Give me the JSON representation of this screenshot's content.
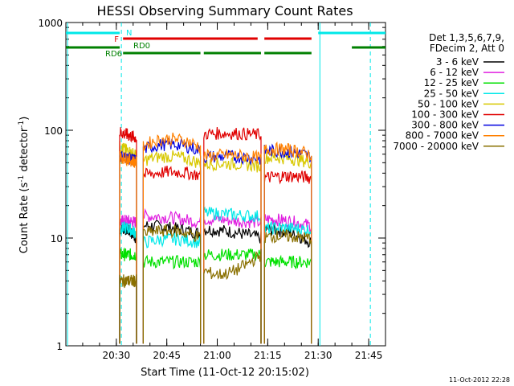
{
  "chart_data": {
    "type": "line",
    "title": "HESSI Observing Summary Count Rates",
    "xlabel": "Start Time (11-Oct-12 20:15:02)",
    "ylabel_main": "Count Rate (s",
    "ylabel_sup1": "-1",
    "ylabel_mid": " detector",
    "ylabel_sup2": "-1",
    "ylabel_end": ")",
    "yscale": "log",
    "ylim": [
      1,
      1000
    ],
    "xlim_minutes": [
      0,
      95
    ],
    "x_ticks": [
      {
        "m": 15,
        "label": "20:30"
      },
      {
        "m": 30,
        "label": "20:45"
      },
      {
        "m": 45,
        "label": "21:00"
      },
      {
        "m": 60,
        "label": "21:15"
      },
      {
        "m": 75,
        "label": "21:30"
      },
      {
        "m": 90,
        "label": "21:45"
      }
    ],
    "y_ticks": [
      {
        "v": 1,
        "label": "1"
      },
      {
        "v": 10,
        "label": "10"
      },
      {
        "v": 100,
        "label": "100"
      },
      {
        "v": 1000,
        "label": "1000"
      }
    ],
    "legend_header1": "Det 1,3,5,6,7,9,",
    "legend_header2": "FDecim 2, Att 0",
    "legend_position": "right, outside plot",
    "series": [
      {
        "name": "3 - 6 keV",
        "color": "#000000",
        "segments": [
          [
            16,
            21,
            12,
            13,
            11,
            10
          ],
          [
            23,
            40,
            13,
            13,
            12,
            11
          ],
          [
            41,
            58,
            12,
            12,
            11,
            10
          ],
          [
            59,
            73,
            12,
            12,
            11,
            9
          ]
        ]
      },
      {
        "name": "6 - 12 keV",
        "color": "#e020e0",
        "segments": [
          [
            16,
            21,
            14,
            15,
            14,
            14
          ],
          [
            23,
            40,
            16,
            16,
            15,
            14
          ],
          [
            41,
            58,
            15,
            15,
            14,
            14
          ],
          [
            59,
            73,
            15,
            15,
            14,
            13
          ]
        ]
      },
      {
        "name": "12 - 25 keV",
        "color": "#00e000",
        "segments": [
          [
            16,
            21,
            7,
            7,
            7,
            7
          ],
          [
            23,
            40,
            6,
            6,
            6,
            6
          ],
          [
            41,
            58,
            7,
            7,
            7,
            7
          ],
          [
            59,
            73,
            6,
            6,
            6,
            6
          ]
        ]
      },
      {
        "name": "25 - 50 keV",
        "color": "#00e8e8",
        "segments": [
          [
            16,
            21,
            12,
            13,
            12,
            11
          ],
          [
            23,
            40,
            9,
            10,
            10,
            9
          ],
          [
            41,
            58,
            17,
            17,
            16,
            16
          ],
          [
            59,
            73,
            12,
            13,
            12,
            12
          ]
        ]
      },
      {
        "name": "50 - 100 keV",
        "color": "#d8c800",
        "segments": [
          [
            16,
            21,
            70,
            66,
            62,
            58
          ],
          [
            23,
            40,
            52,
            60,
            58,
            49
          ],
          [
            41,
            58,
            48,
            50,
            49,
            46
          ],
          [
            59,
            73,
            56,
            56,
            55,
            50
          ]
        ]
      },
      {
        "name": "100 - 300 keV",
        "color": "#e00000",
        "segments": [
          [
            16,
            21,
            96,
            92,
            88,
            85
          ],
          [
            23,
            40,
            38,
            42,
            42,
            38
          ],
          [
            41,
            58,
            92,
            95,
            94,
            90
          ],
          [
            59,
            73,
            36,
            38,
            38,
            36
          ]
        ]
      },
      {
        "name": "300 - 800 keV",
        "color": "#0000e0",
        "segments": [
          [
            16,
            21,
            58,
            56,
            54,
            52
          ],
          [
            23,
            40,
            66,
            78,
            76,
            64
          ],
          [
            41,
            58,
            56,
            58,
            57,
            54
          ],
          [
            59,
            73,
            64,
            65,
            63,
            57
          ]
        ]
      },
      {
        "name": "800 - 7000 keV",
        "color": "#ff8000",
        "segments": [
          [
            16,
            21,
            57,
            55,
            53,
            50
          ],
          [
            23,
            40,
            72,
            88,
            86,
            70
          ],
          [
            41,
            58,
            57,
            60,
            59,
            55
          ],
          [
            59,
            73,
            66,
            68,
            66,
            59
          ]
        ]
      },
      {
        "name": "7000 - 20000 keV",
        "color": "#8a7000",
        "segments": [
          [
            16,
            21,
            4,
            4,
            4,
            4
          ],
          [
            23,
            40,
            11,
            12,
            12,
            10
          ],
          [
            41,
            58,
            5,
            4,
            5,
            7
          ],
          [
            59,
            73,
            10,
            11,
            10,
            10
          ]
        ]
      }
    ],
    "flag_labels": {
      "n": "N",
      "f": "F",
      "rd0": "RD0",
      "rd6": "RD6"
    },
    "flags": {
      "n": {
        "color": "#00e8e8",
        "spans": [
          [
            0,
            16
          ],
          [
            75,
            95
          ]
        ]
      },
      "f": {
        "color": "#e00000",
        "spans": [
          [
            17,
            57
          ],
          [
            59,
            73
          ]
        ]
      },
      "rd0": {
        "color": "#008000",
        "spans": [
          [
            0,
            16
          ],
          [
            85,
            95
          ]
        ]
      },
      "rd6": {
        "color": "#008000",
        "spans": [
          [
            17,
            40
          ],
          [
            41,
            58
          ],
          [
            59,
            73
          ]
        ]
      }
    },
    "verticals_dashed": [
      16.5,
      90.5
    ],
    "verticals_solid": [
      0.5,
      75.5
    ],
    "timestamp": "11-Oct-2012 22:28"
  }
}
